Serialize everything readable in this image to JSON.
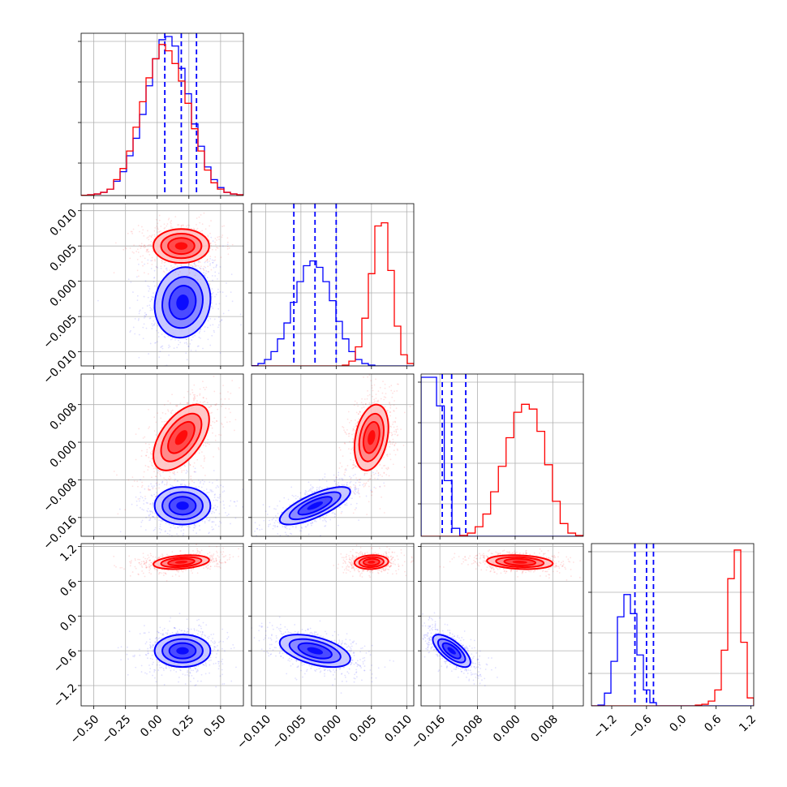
{
  "chart_data": {
    "type": "corner",
    "ndim": 4,
    "grid": true,
    "series": [
      {
        "color": "#0000ff",
        "quantiles": [
          [
            0.06,
            0.19,
            0.31
          ],
          [
            -0.006,
            -0.003,
            0.0
          ],
          [
            -0.0155,
            -0.0135,
            -0.0105
          ],
          [
            -0.8,
            -0.6,
            -0.48
          ]
        ],
        "center": [
          0.2,
          -0.003,
          -0.0135,
          -0.6
        ],
        "sigma": [
          0.11,
          0.0025,
          0.002,
          0.14
        ],
        "corr": {
          "1-0": 0.1,
          "2-0": 0.0,
          "2-1": 0.75,
          "3-0": 0.0,
          "3-1": -0.5,
          "3-2": -0.7
        },
        "hist": [
          [
            0.2,
            0.5,
            1,
            2,
            4,
            9,
            15,
            25,
            36,
            51,
            69,
            86,
            98,
            100,
            94,
            80,
            64,
            45,
            31,
            18,
            10,
            5,
            2,
            1,
            0.5
          ],
          [
            0.2,
            1.5,
            4,
            9,
            17,
            27,
            40,
            53,
            63,
            66,
            62,
            53,
            41,
            28,
            17,
            9,
            4,
            1.5,
            0.5,
            0,
            0,
            0,
            0,
            0,
            0
          ],
          [
            100,
            100,
            82,
            35,
            5,
            0.5,
            0,
            0,
            0,
            0,
            0,
            0,
            0,
            0,
            0,
            0,
            0,
            0,
            0,
            0,
            0
          ],
          [
            0,
            0.5,
            8,
            28,
            56,
            70,
            58,
            32,
            10,
            2,
            0,
            0,
            0,
            0,
            0,
            0,
            0,
            0,
            0,
            0,
            0,
            0,
            0,
            0,
            0
          ]
        ]
      },
      {
        "color": "#ff0000",
        "quantiles": null,
        "center": [
          0.19,
          0.005,
          0.001,
          0.93
        ],
        "sigma": [
          0.11,
          0.0012,
          0.0035,
          0.06
        ],
        "corr": {
          "1-0": 0.0,
          "2-0": 0.55,
          "2-1": 0.3,
          "3-0": 0.3,
          "3-1": 0.1,
          "3-2": -0.2
        },
        "hist": [
          [
            0.2,
            0.5,
            1,
            2,
            4,
            10,
            17,
            28,
            43,
            59,
            74,
            86,
            95,
            91,
            83,
            72,
            58,
            42,
            28,
            16,
            8,
            4,
            2,
            1,
            0.5
          ],
          [
            0,
            0,
            0,
            0,
            0,
            0,
            0,
            0,
            0,
            0,
            0,
            0,
            0,
            0,
            0.5,
            3,
            12,
            30,
            58,
            88,
            90,
            60,
            25,
            7,
            1.5
          ],
          [
            0,
            0,
            0,
            0,
            0,
            0.5,
            2,
            6,
            14,
            28,
            44,
            62,
            78,
            83,
            80,
            66,
            45,
            22,
            8,
            2,
            0.5
          ],
          [
            0,
            0,
            0,
            0,
            0,
            0,
            0,
            0,
            0,
            0,
            0,
            0,
            0,
            0,
            0,
            0,
            0.5,
            1,
            3,
            10,
            35,
            80,
            98,
            40,
            5
          ]
        ]
      }
    ],
    "ranges": [
      [
        -0.6,
        0.68
      ],
      [
        -0.012,
        0.011
      ],
      [
        -0.02,
        0.0145
      ],
      [
        -1.55,
        1.25
      ]
    ],
    "ticks": [
      [
        -0.5,
        -0.25,
        0.0,
        0.25,
        0.5
      ],
      [
        -0.01,
        -0.005,
        0.0,
        0.005,
        0.01
      ],
      [
        -0.016,
        -0.008,
        0.0,
        0.008
      ],
      [
        -1.2,
        -0.6,
        0.0,
        0.6,
        1.2
      ]
    ],
    "tick_labels": [
      [
        "−0.50",
        "−0.25",
        "0.00",
        "0.25",
        "0.50"
      ],
      [
        "−0.010",
        "−0.005",
        "0.000",
        "0.005",
        "0.010"
      ],
      [
        "−0.016",
        "−0.008",
        "0.000",
        "0.008"
      ],
      [
        "−1.2",
        "−0.6",
        "0.0",
        "0.6",
        "1.2"
      ]
    ],
    "hist_y_ticks": [
      0.2,
      0.45,
      0.7,
      0.95
    ]
  }
}
